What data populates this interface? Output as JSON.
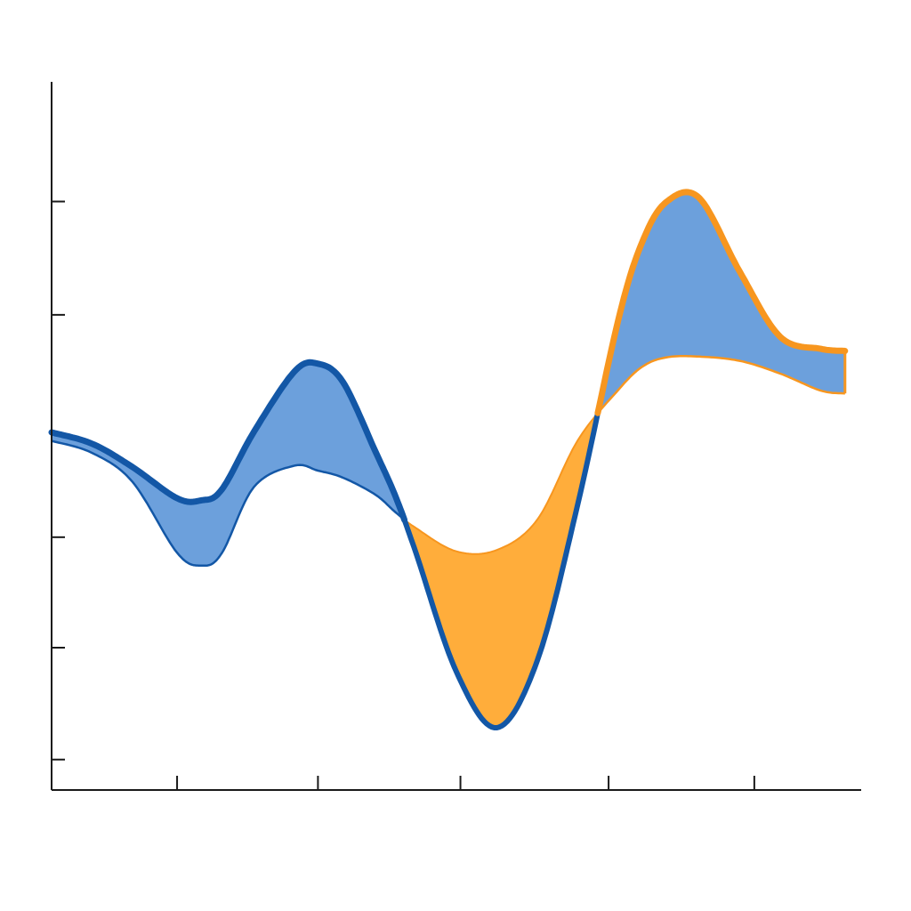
{
  "chart_data": {
    "type": "area",
    "title": "",
    "xlabel": "",
    "ylabel": "",
    "xlim": [
      0,
      100
    ],
    "ylim": [
      0,
      100
    ],
    "x_ticks": [
      15.5,
      32.9,
      50.5,
      68.8,
      86.8
    ],
    "y_ticks": [
      4.3,
      20.1,
      35.7,
      67.1,
      83.1
    ],
    "grid": false,
    "legend": "none",
    "x": [
      0,
      5,
      10,
      15.5,
      18.5,
      21,
      25,
      30,
      32.9,
      36,
      40,
      42.5,
      45,
      50,
      55,
      60,
      65,
      70,
      73,
      76,
      80,
      85,
      90,
      95,
      98
    ],
    "series": [
      {
        "values": [
          50.5,
          48.9,
          45.6,
          41.2,
          40.9,
          42.4,
          50.6,
          59.1,
          60.2,
          57.6,
          47.8,
          41.4,
          33.5,
          16.7,
          8.8,
          18.3,
          40.4,
          66.4,
          77.5,
          83.1,
          83.6,
          73.2,
          64.0,
          62.3,
          62.0
        ]
      },
      {
        "values": [
          49.3,
          47.6,
          43.5,
          33.5,
          31.7,
          33.4,
          42.8,
          45.8,
          45.1,
          44.1,
          41.7,
          39.2,
          37.0,
          33.7,
          33.9,
          38.2,
          49.4,
          56.5,
          59.8,
          61.1,
          61.2,
          60.6,
          58.8,
          56.4,
          56.0
        ]
      }
    ],
    "colors": {
      "above": "#6ca0dc",
      "below": "#ffad3b",
      "above_edge": "#1357a6",
      "below_edge": "#f7961f",
      "axis": "#1a1a1a"
    }
  }
}
